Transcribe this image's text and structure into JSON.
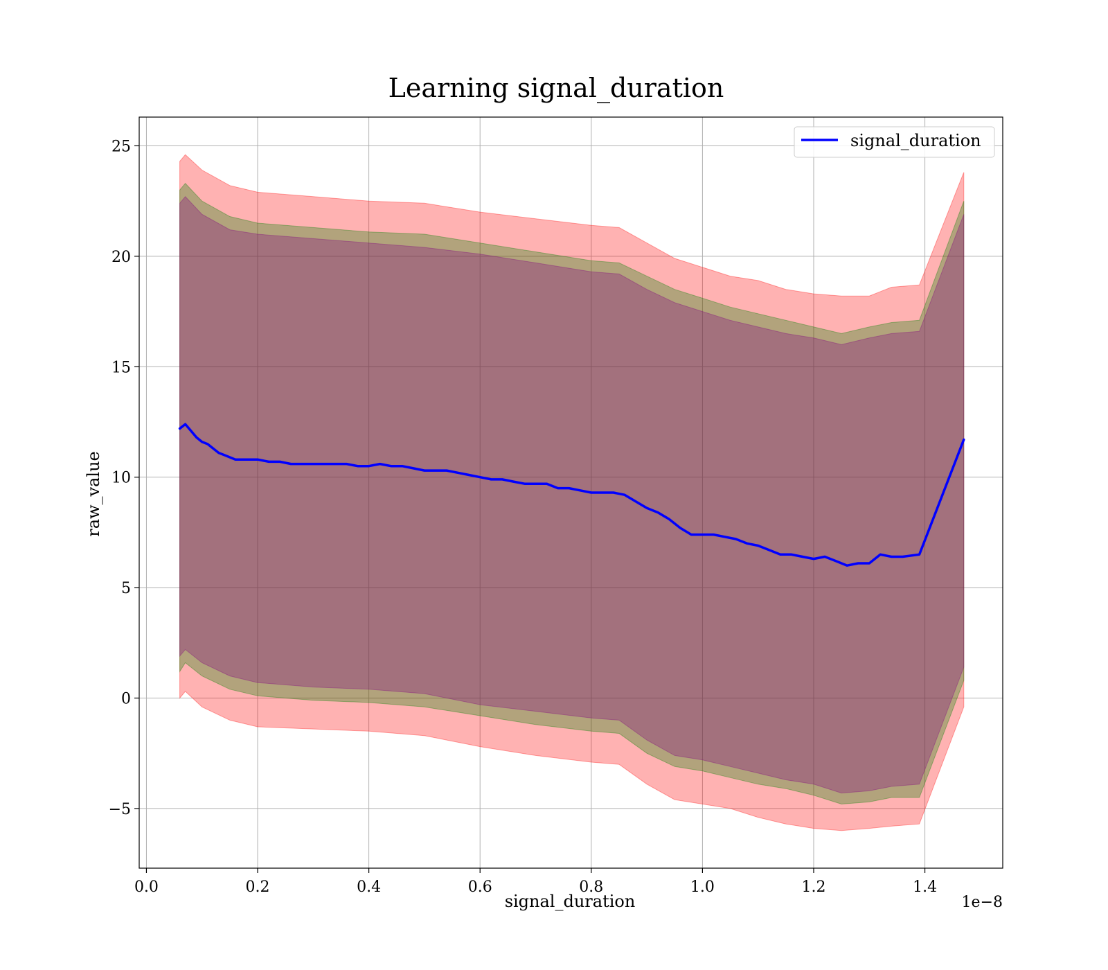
{
  "chart_data": {
    "type": "line",
    "title": "Learning signal_duration",
    "xlabel": "signal_duration",
    "ylabel": "raw_value",
    "x_offset_label": "1e−8",
    "xlim": [
      -0.013,
      1.54
    ],
    "ylim": [
      -7.7,
      26.3
    ],
    "xticks": [
      0.0,
      0.2,
      0.4,
      0.6,
      0.8,
      1.0,
      1.2,
      1.4
    ],
    "xtick_labels": [
      "0.0",
      "0.2",
      "0.4",
      "0.6",
      "0.8",
      "1.0",
      "1.2",
      "1.4"
    ],
    "yticks": [
      -5,
      0,
      5,
      10,
      15,
      20,
      25
    ],
    "ytick_labels": [
      "−5",
      "0",
      "5",
      "10",
      "15",
      "20",
      "25"
    ],
    "grid": true,
    "legend": {
      "position": "top-right",
      "entries": [
        "signal_duration"
      ]
    },
    "series": [
      {
        "name": "signal_duration",
        "color": "#0000ff",
        "x": [
          0.06,
          0.07,
          0.08,
          0.09,
          0.1,
          0.11,
          0.12,
          0.13,
          0.14,
          0.15,
          0.16,
          0.18,
          0.2,
          0.22,
          0.24,
          0.26,
          0.28,
          0.3,
          0.32,
          0.34,
          0.36,
          0.38,
          0.4,
          0.42,
          0.44,
          0.46,
          0.48,
          0.5,
          0.52,
          0.54,
          0.56,
          0.58,
          0.6,
          0.62,
          0.64,
          0.66,
          0.68,
          0.7,
          0.72,
          0.74,
          0.76,
          0.78,
          0.8,
          0.82,
          0.84,
          0.86,
          0.88,
          0.9,
          0.92,
          0.94,
          0.96,
          0.98,
          1.0,
          1.02,
          1.04,
          1.06,
          1.08,
          1.1,
          1.12,
          1.14,
          1.16,
          1.18,
          1.2,
          1.22,
          1.24,
          1.26,
          1.28,
          1.3,
          1.32,
          1.34,
          1.36,
          1.39,
          1.47
        ],
        "y": [
          12.2,
          12.4,
          12.1,
          11.8,
          11.6,
          11.5,
          11.3,
          11.1,
          11.0,
          10.9,
          10.8,
          10.8,
          10.8,
          10.7,
          10.7,
          10.6,
          10.6,
          10.6,
          10.6,
          10.6,
          10.6,
          10.5,
          10.5,
          10.6,
          10.5,
          10.5,
          10.4,
          10.3,
          10.3,
          10.3,
          10.2,
          10.1,
          10.0,
          9.9,
          9.9,
          9.8,
          9.7,
          9.7,
          9.7,
          9.5,
          9.5,
          9.4,
          9.3,
          9.3,
          9.3,
          9.2,
          8.9,
          8.6,
          8.4,
          8.1,
          7.7,
          7.4,
          7.4,
          7.4,
          7.3,
          7.2,
          7.0,
          6.9,
          6.7,
          6.5,
          6.5,
          6.4,
          6.3,
          6.4,
          6.2,
          6.0,
          6.1,
          6.1,
          6.5,
          6.4,
          6.4,
          6.5,
          11.7
        ]
      }
    ],
    "bands": [
      {
        "name": "",
        "color": "#ff0000",
        "opacity": 0.3,
        "x": [
          0.06,
          0.07,
          0.1,
          0.15,
          0.2,
          0.3,
          0.4,
          0.5,
          0.6,
          0.7,
          0.8,
          0.85,
          0.9,
          0.95,
          1.0,
          1.05,
          1.1,
          1.15,
          1.2,
          1.25,
          1.3,
          1.34,
          1.39,
          1.47
        ],
        "upper": [
          24.3,
          24.6,
          23.9,
          23.2,
          22.9,
          22.7,
          22.5,
          22.4,
          22.0,
          21.7,
          21.4,
          21.3,
          20.6,
          19.9,
          19.5,
          19.1,
          18.9,
          18.5,
          18.3,
          18.2,
          18.2,
          18.6,
          18.7,
          23.8
        ],
        "lower": [
          0.0,
          0.3,
          -0.4,
          -1.0,
          -1.3,
          -1.4,
          -1.5,
          -1.7,
          -2.2,
          -2.6,
          -2.9,
          -3.0,
          -3.9,
          -4.6,
          -4.8,
          -5.0,
          -5.4,
          -5.7,
          -5.9,
          -6.0,
          -5.9,
          -5.8,
          -5.7,
          -0.4
        ]
      },
      {
        "name": "",
        "color": "#008000",
        "opacity": 0.3,
        "x": [
          0.06,
          0.07,
          0.1,
          0.15,
          0.2,
          0.3,
          0.4,
          0.5,
          0.6,
          0.7,
          0.8,
          0.85,
          0.9,
          0.95,
          1.0,
          1.05,
          1.1,
          1.15,
          1.2,
          1.25,
          1.3,
          1.34,
          1.39,
          1.47
        ],
        "upper": [
          23.0,
          23.3,
          22.5,
          21.8,
          21.5,
          21.3,
          21.1,
          21.0,
          20.6,
          20.2,
          19.8,
          19.7,
          19.1,
          18.5,
          18.1,
          17.7,
          17.4,
          17.1,
          16.8,
          16.5,
          16.8,
          17.0,
          17.1,
          22.5
        ],
        "lower": [
          1.2,
          1.6,
          1.0,
          0.4,
          0.1,
          -0.1,
          -0.2,
          -0.4,
          -0.8,
          -1.2,
          -1.5,
          -1.6,
          -2.5,
          -3.1,
          -3.3,
          -3.6,
          -3.9,
          -4.1,
          -4.4,
          -4.8,
          -4.7,
          -4.5,
          -4.5,
          0.8
        ]
      },
      {
        "name": "",
        "color": "#800080",
        "opacity": 0.3,
        "x": [
          0.06,
          0.07,
          0.1,
          0.15,
          0.2,
          0.3,
          0.4,
          0.5,
          0.6,
          0.7,
          0.8,
          0.85,
          0.9,
          0.95,
          1.0,
          1.05,
          1.1,
          1.15,
          1.2,
          1.25,
          1.3,
          1.34,
          1.39,
          1.47
        ],
        "upper": [
          22.4,
          22.7,
          21.9,
          21.2,
          21.0,
          20.8,
          20.6,
          20.4,
          20.1,
          19.7,
          19.3,
          19.2,
          18.5,
          17.9,
          17.5,
          17.1,
          16.8,
          16.5,
          16.3,
          16.0,
          16.3,
          16.5,
          16.6,
          21.9
        ],
        "lower": [
          1.9,
          2.2,
          1.6,
          1.0,
          0.7,
          0.5,
          0.4,
          0.2,
          -0.3,
          -0.6,
          -0.9,
          -1.0,
          -1.9,
          -2.6,
          -2.8,
          -3.1,
          -3.4,
          -3.7,
          -3.9,
          -4.3,
          -4.2,
          -4.0,
          -3.9,
          1.4
        ]
      }
    ]
  }
}
